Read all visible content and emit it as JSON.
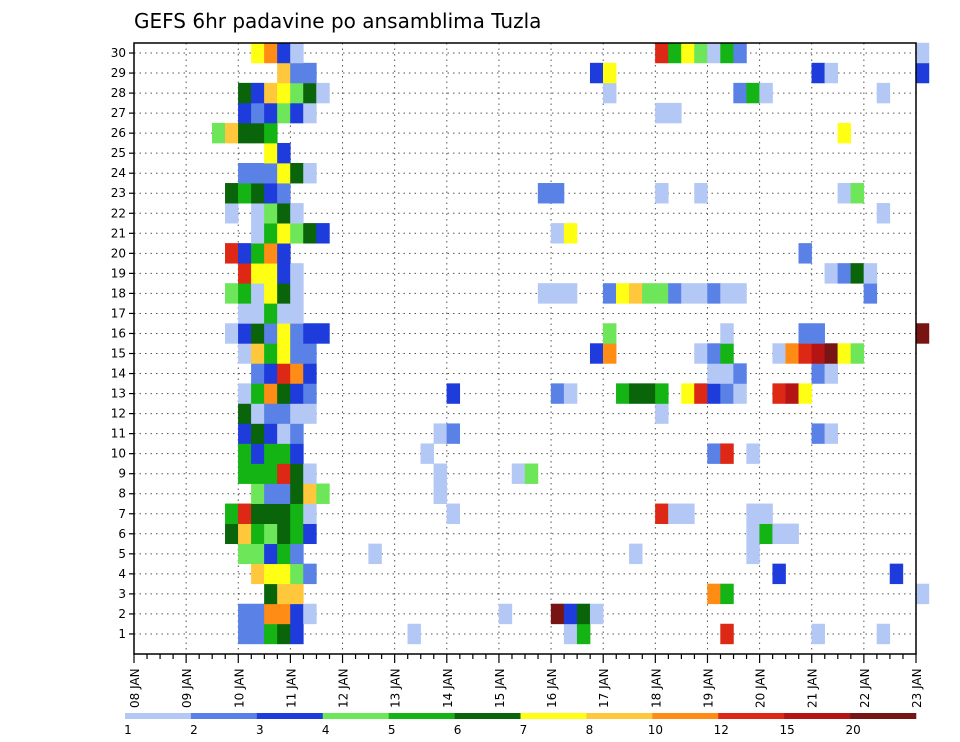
{
  "chart_data": {
    "type": "heatmap",
    "title": "GEFS 6hr padavine po ansamblima Tuzla",
    "x_ticks": [
      "08 JAN",
      "09 JAN",
      "10 JAN",
      "11 JAN",
      "12 JAN",
      "13 JAN",
      "14 JAN",
      "15 JAN",
      "16 JAN",
      "17 JAN",
      "18 JAN",
      "19 JAN",
      "20 JAN",
      "21 JAN",
      "22 JAN",
      "23 JAN"
    ],
    "y_ticks": [
      "1",
      "2",
      "3",
      "4",
      "5",
      "6",
      "7",
      "8",
      "9",
      "10",
      "11",
      "12",
      "13",
      "14",
      "15",
      "16",
      "17",
      "18",
      "19",
      "20",
      "21",
      "22",
      "23",
      "24",
      "25",
      "26",
      "27",
      "28",
      "29",
      "30"
    ],
    "x_range": [
      "08 JAN 00Z",
      "23 JAN 00Z"
    ],
    "time_step_hours": 6,
    "y_range": [
      0.5,
      30.5
    ],
    "grid": "dotted",
    "legend": {
      "position": "bottom",
      "labels": [
        "1",
        "2",
        "3",
        "4",
        "5",
        "6",
        "7",
        "8",
        "10",
        "12",
        "15",
        "20"
      ],
      "colors": [
        "#b4c8f5",
        "#5a82e6",
        "#1e3cdc",
        "#6ee65a",
        "#14b414",
        "#0a640a",
        "#ffff14",
        "#ffc83c",
        "#ff8c14",
        "#dc2814",
        "#b41414",
        "#781414"
      ]
    },
    "series_description": "Each row is an ensemble member (1-30); each cell is a 6-hour step starting at 08 JAN 00Z; value = color class index 1-12 matching the legend.",
    "members": {
      "1": [
        [
          8,
          2
        ],
        [
          9,
          2
        ],
        [
          10,
          5
        ],
        [
          11,
          6
        ],
        [
          12,
          3
        ],
        [
          21,
          1
        ],
        [
          33,
          1
        ],
        [
          34,
          5
        ],
        [
          45,
          10
        ],
        [
          52,
          1
        ],
        [
          57,
          1
        ]
      ],
      "2": [
        [
          8,
          2
        ],
        [
          9,
          2
        ],
        [
          10,
          9
        ],
        [
          11,
          9
        ],
        [
          12,
          3
        ],
        [
          13,
          1
        ],
        [
          28,
          1
        ],
        [
          32,
          12
        ],
        [
          33,
          3
        ],
        [
          34,
          6
        ],
        [
          35,
          1
        ]
      ],
      "3": [
        [
          10,
          6
        ],
        [
          11,
          8
        ],
        [
          12,
          8
        ],
        [
          44,
          9
        ],
        [
          45,
          5
        ],
        [
          60,
          1
        ]
      ],
      "4": [
        [
          9,
          8
        ],
        [
          10,
          7
        ],
        [
          11,
          7
        ],
        [
          12,
          4
        ],
        [
          13,
          2
        ],
        [
          49,
          3
        ],
        [
          58,
          3
        ]
      ],
      "5": [
        [
          8,
          4
        ],
        [
          9,
          4
        ],
        [
          10,
          3
        ],
        [
          11,
          5
        ],
        [
          12,
          2
        ],
        [
          18,
          1
        ],
        [
          38,
          1
        ],
        [
          47,
          1
        ]
      ],
      "6": [
        [
          7,
          6
        ],
        [
          8,
          8
        ],
        [
          9,
          5
        ],
        [
          10,
          4
        ],
        [
          11,
          6
        ],
        [
          12,
          5
        ],
        [
          13,
          3
        ],
        [
          47,
          1
        ],
        [
          48,
          5
        ],
        [
          49,
          1
        ],
        [
          50,
          1
        ]
      ],
      "7": [
        [
          7,
          5
        ],
        [
          8,
          10
        ],
        [
          9,
          6
        ],
        [
          10,
          6
        ],
        [
          11,
          6
        ],
        [
          12,
          5
        ],
        [
          13,
          1
        ],
        [
          24,
          1
        ],
        [
          40,
          10
        ],
        [
          41,
          1
        ],
        [
          42,
          1
        ],
        [
          47,
          1
        ],
        [
          48,
          1
        ]
      ],
      "8": [
        [
          9,
          4
        ],
        [
          10,
          2
        ],
        [
          11,
          2
        ],
        [
          12,
          6
        ],
        [
          13,
          8
        ],
        [
          14,
          4
        ],
        [
          23,
          1
        ]
      ],
      "9": [
        [
          8,
          5
        ],
        [
          9,
          5
        ],
        [
          10,
          5
        ],
        [
          11,
          10
        ],
        [
          12,
          6
        ],
        [
          13,
          1
        ],
        [
          23,
          1
        ],
        [
          29,
          1
        ],
        [
          30,
          4
        ]
      ],
      "10": [
        [
          8,
          5
        ],
        [
          9,
          3
        ],
        [
          10,
          5
        ],
        [
          11,
          5
        ],
        [
          12,
          3
        ],
        [
          22,
          1
        ],
        [
          44,
          2
        ],
        [
          45,
          10
        ],
        [
          47,
          1
        ]
      ],
      "11": [
        [
          8,
          3
        ],
        [
          9,
          6
        ],
        [
          10,
          3
        ],
        [
          11,
          1
        ],
        [
          12,
          2
        ],
        [
          23,
          1
        ],
        [
          24,
          2
        ],
        [
          52,
          2
        ],
        [
          53,
          1
        ]
      ],
      "12": [
        [
          8,
          6
        ],
        [
          9,
          1
        ],
        [
          10,
          2
        ],
        [
          11,
          2
        ],
        [
          12,
          1
        ],
        [
          13,
          1
        ],
        [
          40,
          1
        ]
      ],
      "13": [
        [
          8,
          1
        ],
        [
          9,
          5
        ],
        [
          10,
          9
        ],
        [
          11,
          6
        ],
        [
          12,
          3
        ],
        [
          13,
          2
        ],
        [
          24,
          3
        ],
        [
          32,
          2
        ],
        [
          33,
          1
        ],
        [
          37,
          5
        ],
        [
          38,
          6
        ],
        [
          39,
          6
        ],
        [
          40,
          5
        ],
        [
          42,
          7
        ],
        [
          43,
          10
        ],
        [
          44,
          3
        ],
        [
          45,
          2
        ],
        [
          46,
          1
        ],
        [
          49,
          10
        ],
        [
          50,
          11
        ],
        [
          51,
          7
        ]
      ],
      "14": [
        [
          9,
          2
        ],
        [
          10,
          3
        ],
        [
          11,
          10
        ],
        [
          12,
          9
        ],
        [
          13,
          3
        ],
        [
          44,
          1
        ],
        [
          45,
          1
        ],
        [
          46,
          2
        ],
        [
          52,
          2
        ],
        [
          53,
          1
        ]
      ],
      "15": [
        [
          8,
          1
        ],
        [
          9,
          8
        ],
        [
          10,
          5
        ],
        [
          11,
          7
        ],
        [
          12,
          2
        ],
        [
          13,
          2
        ],
        [
          35,
          3
        ],
        [
          36,
          9
        ],
        [
          43,
          1
        ],
        [
          44,
          2
        ],
        [
          45,
          5
        ],
        [
          49,
          1
        ],
        [
          50,
          9
        ],
        [
          51,
          10
        ],
        [
          52,
          11
        ],
        [
          53,
          12
        ],
        [
          54,
          7
        ],
        [
          55,
          4
        ]
      ],
      "16": [
        [
          7,
          1
        ],
        [
          8,
          3
        ],
        [
          9,
          6
        ],
        [
          10,
          2
        ],
        [
          11,
          7
        ],
        [
          12,
          2
        ],
        [
          13,
          3
        ],
        [
          14,
          3
        ],
        [
          36,
          4
        ],
        [
          45,
          1
        ],
        [
          51,
          2
        ],
        [
          52,
          2
        ],
        [
          60,
          12
        ]
      ],
      "17": [
        [
          8,
          1
        ],
        [
          9,
          1
        ],
        [
          10,
          5
        ],
        [
          11,
          1
        ],
        [
          12,
          1
        ]
      ],
      "18": [
        [
          7,
          4
        ],
        [
          8,
          5
        ],
        [
          9,
          1
        ],
        [
          10,
          7
        ],
        [
          11,
          6
        ],
        [
          12,
          1
        ],
        [
          31,
          1
        ],
        [
          32,
          1
        ],
        [
          33,
          1
        ],
        [
          36,
          2
        ],
        [
          37,
          7
        ],
        [
          38,
          8
        ],
        [
          39,
          4
        ],
        [
          40,
          4
        ],
        [
          41,
          2
        ],
        [
          42,
          1
        ],
        [
          43,
          1
        ],
        [
          44,
          2
        ],
        [
          45,
          1
        ],
        [
          46,
          1
        ],
        [
          56,
          2
        ]
      ],
      "19": [
        [
          8,
          10
        ],
        [
          9,
          7
        ],
        [
          10,
          7
        ],
        [
          11,
          3
        ],
        [
          12,
          1
        ],
        [
          53,
          1
        ],
        [
          54,
          2
        ],
        [
          55,
          6
        ],
        [
          56,
          1
        ]
      ],
      "20": [
        [
          7,
          10
        ],
        [
          8,
          3
        ],
        [
          9,
          5
        ],
        [
          10,
          9
        ],
        [
          11,
          3
        ],
        [
          51,
          2
        ]
      ],
      "21": [
        [
          9,
          1
        ],
        [
          10,
          5
        ],
        [
          11,
          7
        ],
        [
          12,
          4
        ],
        [
          13,
          6
        ],
        [
          14,
          3
        ],
        [
          32,
          1
        ],
        [
          33,
          7
        ]
      ],
      "22": [
        [
          7,
          1
        ],
        [
          9,
          1
        ],
        [
          10,
          4
        ],
        [
          11,
          6
        ],
        [
          12,
          1
        ],
        [
          57,
          1
        ]
      ],
      "23": [
        [
          7,
          6
        ],
        [
          8,
          5
        ],
        [
          9,
          6
        ],
        [
          10,
          3
        ],
        [
          11,
          2
        ],
        [
          31,
          2
        ],
        [
          32,
          2
        ],
        [
          40,
          1
        ],
        [
          43,
          1
        ],
        [
          54,
          1
        ],
        [
          55,
          4
        ]
      ],
      "24": [
        [
          8,
          2
        ],
        [
          9,
          2
        ],
        [
          10,
          2
        ],
        [
          11,
          7
        ],
        [
          12,
          6
        ],
        [
          13,
          1
        ]
      ],
      "25": [
        [
          10,
          7
        ],
        [
          11,
          3
        ]
      ],
      "26": [
        [
          6,
          4
        ],
        [
          7,
          8
        ],
        [
          8,
          6
        ],
        [
          9,
          6
        ],
        [
          10,
          5
        ],
        [
          54,
          7
        ]
      ],
      "27": [
        [
          8,
          3
        ],
        [
          9,
          2
        ],
        [
          10,
          3
        ],
        [
          11,
          4
        ],
        [
          12,
          3
        ],
        [
          13,
          1
        ],
        [
          40,
          1
        ],
        [
          41,
          1
        ]
      ],
      "28": [
        [
          8,
          6
        ],
        [
          9,
          3
        ],
        [
          10,
          8
        ],
        [
          11,
          7
        ],
        [
          12,
          4
        ],
        [
          13,
          6
        ],
        [
          14,
          1
        ],
        [
          36,
          1
        ],
        [
          46,
          2
        ],
        [
          47,
          5
        ],
        [
          48,
          1
        ],
        [
          57,
          1
        ]
      ],
      "29": [
        [
          11,
          8
        ],
        [
          12,
          2
        ],
        [
          13,
          2
        ],
        [
          35,
          3
        ],
        [
          36,
          7
        ],
        [
          52,
          3
        ],
        [
          53,
          1
        ],
        [
          60,
          3
        ]
      ],
      "30": [
        [
          9,
          7
        ],
        [
          10,
          9
        ],
        [
          11,
          3
        ],
        [
          12,
          1
        ],
        [
          40,
          10
        ],
        [
          41,
          5
        ],
        [
          42,
          7
        ],
        [
          43,
          4
        ],
        [
          44,
          1
        ],
        [
          45,
          5
        ],
        [
          46,
          2
        ],
        [
          60,
          1
        ]
      ]
    }
  }
}
